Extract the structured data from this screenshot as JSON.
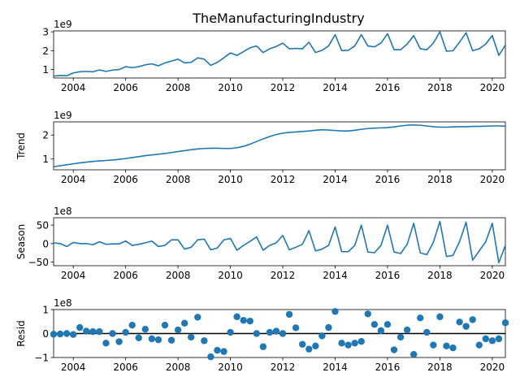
{
  "figure": {
    "title": "TheManufacturingIndustry",
    "x_ticks": [
      "2004",
      "2006",
      "2008",
      "2010",
      "2012",
      "2014",
      "2016",
      "2018",
      "2020"
    ],
    "line_color": "#1f77b4",
    "zero_line_color": "#000000"
  },
  "chart_data": [
    {
      "type": "line",
      "title": "TheManufacturingIndustry",
      "ylabel": "",
      "y_multiplier": "1e9",
      "xlim": [
        2003.25,
        2020.5
      ],
      "ylim": [
        0.55,
        3.05
      ],
      "y_ticks": [
        "1",
        "2",
        "3"
      ],
      "y_tick_values": [
        1,
        2,
        3
      ],
      "x": [
        2003.25,
        2003.5,
        2003.75,
        2004.0,
        2004.25,
        2004.5,
        2004.75,
        2005.0,
        2005.25,
        2005.5,
        2005.75,
        2006.0,
        2006.25,
        2006.5,
        2006.75,
        2007.0,
        2007.25,
        2007.5,
        2007.75,
        2008.0,
        2008.25,
        2008.5,
        2008.75,
        2009.0,
        2009.25,
        2009.5,
        2009.75,
        2010.0,
        2010.25,
        2010.5,
        2010.75,
        2011.0,
        2011.25,
        2011.5,
        2011.75,
        2012.0,
        2012.25,
        2012.5,
        2012.75,
        2013.0,
        2013.25,
        2013.5,
        2013.75,
        2014.0,
        2014.25,
        2014.5,
        2014.75,
        2015.0,
        2015.25,
        2015.5,
        2015.75,
        2016.0,
        2016.25,
        2016.5,
        2016.75,
        2017.0,
        2017.25,
        2017.5,
        2017.75,
        2018.0,
        2018.25,
        2018.5,
        2018.75,
        2019.0,
        2019.25,
        2019.5,
        2019.75,
        2020.0,
        2020.25,
        2020.5
      ],
      "series": [
        {
          "values": [
            0.65,
            0.68,
            0.67,
            0.82,
            0.88,
            0.9,
            0.88,
            0.98,
            0.9,
            0.97,
            1.0,
            1.15,
            1.1,
            1.15,
            1.25,
            1.3,
            1.2,
            1.35,
            1.45,
            1.55,
            1.35,
            1.38,
            1.62,
            1.55,
            1.22,
            1.38,
            1.62,
            1.88,
            1.75,
            1.95,
            2.15,
            2.25,
            1.9,
            2.1,
            2.22,
            2.4,
            2.1,
            2.12,
            2.1,
            2.45,
            1.9,
            2.02,
            2.25,
            2.85,
            2.0,
            2.02,
            2.25,
            2.85,
            2.25,
            2.2,
            2.4,
            2.9,
            2.05,
            2.05,
            2.35,
            2.8,
            2.1,
            2.05,
            2.4,
            3.0,
            1.97,
            2.0,
            2.45,
            2.95,
            2.0,
            2.1,
            2.35,
            2.8,
            1.75,
            2.3
          ]
        }
      ]
    },
    {
      "type": "line",
      "ylabel": "Trend",
      "y_multiplier": "1e9",
      "xlim": [
        2003.25,
        2020.5
      ],
      "ylim": [
        0.55,
        2.55
      ],
      "y_ticks": [
        "1",
        "2"
      ],
      "y_tick_values": [
        1,
        2
      ],
      "x": [
        2003.25,
        2003.5,
        2003.75,
        2004.0,
        2004.25,
        2004.5,
        2004.75,
        2005.0,
        2005.25,
        2005.5,
        2005.75,
        2006.0,
        2006.25,
        2006.5,
        2006.75,
        2007.0,
        2007.25,
        2007.5,
        2007.75,
        2008.0,
        2008.25,
        2008.5,
        2008.75,
        2009.0,
        2009.25,
        2009.5,
        2009.75,
        2010.0,
        2010.25,
        2010.5,
        2010.75,
        2011.0,
        2011.25,
        2011.5,
        2011.75,
        2012.0,
        2012.25,
        2012.5,
        2012.75,
        2013.0,
        2013.25,
        2013.5,
        2013.75,
        2014.0,
        2014.25,
        2014.5,
        2014.75,
        2015.0,
        2015.25,
        2015.5,
        2015.75,
        2016.0,
        2016.25,
        2016.5,
        2016.75,
        2017.0,
        2017.25,
        2017.5,
        2017.75,
        2018.0,
        2018.25,
        2018.5,
        2018.75,
        2019.0,
        2019.25,
        2019.5,
        2019.75,
        2020.0,
        2020.25,
        2020.5
      ],
      "series": [
        {
          "values": [
            0.68,
            0.72,
            0.76,
            0.8,
            0.84,
            0.87,
            0.9,
            0.92,
            0.94,
            0.96,
            0.99,
            1.02,
            1.06,
            1.1,
            1.14,
            1.17,
            1.2,
            1.23,
            1.27,
            1.31,
            1.35,
            1.39,
            1.42,
            1.44,
            1.45,
            1.45,
            1.44,
            1.44,
            1.47,
            1.53,
            1.62,
            1.73,
            1.84,
            1.94,
            2.02,
            2.08,
            2.11,
            2.13,
            2.15,
            2.17,
            2.2,
            2.22,
            2.21,
            2.19,
            2.17,
            2.17,
            2.2,
            2.24,
            2.27,
            2.29,
            2.3,
            2.31,
            2.34,
            2.38,
            2.41,
            2.42,
            2.41,
            2.38,
            2.35,
            2.33,
            2.33,
            2.34,
            2.35,
            2.35,
            2.36,
            2.36,
            2.37,
            2.38,
            2.38,
            2.37
          ]
        }
      ]
    },
    {
      "type": "line",
      "ylabel": "Season",
      "y_multiplier": "1e8",
      "xlim": [
        2003.25,
        2020.5
      ],
      "ylim": [
        -0.6,
        0.7
      ],
      "y_ticks": [
        "−50",
        "0",
        "50"
      ],
      "y_tick_values": [
        -0.5,
        0,
        0.5
      ],
      "x": [
        2003.25,
        2003.5,
        2003.75,
        2004.0,
        2004.25,
        2004.5,
        2004.75,
        2005.0,
        2005.25,
        2005.5,
        2005.75,
        2006.0,
        2006.25,
        2006.5,
        2006.75,
        2007.0,
        2007.25,
        2007.5,
        2007.75,
        2008.0,
        2008.25,
        2008.5,
        2008.75,
        2009.0,
        2009.25,
        2009.5,
        2009.75,
        2010.0,
        2010.25,
        2010.5,
        2010.75,
        2011.0,
        2011.25,
        2011.5,
        2011.75,
        2012.0,
        2012.25,
        2012.5,
        2012.75,
        2013.0,
        2013.25,
        2013.5,
        2013.75,
        2014.0,
        2014.25,
        2014.5,
        2014.75,
        2015.0,
        2015.25,
        2015.5,
        2015.75,
        2016.0,
        2016.25,
        2016.5,
        2016.75,
        2017.0,
        2017.25,
        2017.5,
        2017.75,
        2018.0,
        2018.25,
        2018.5,
        2018.75,
        2019.0,
        2019.25,
        2019.5,
        2019.75,
        2020.0,
        2020.25,
        2020.5
      ],
      "series": [
        {
          "values": [
            0.02,
            0.0,
            -0.08,
            0.03,
            0.0,
            0.0,
            -0.03,
            0.05,
            -0.02,
            -0.01,
            -0.01,
            0.07,
            -0.05,
            -0.02,
            0.02,
            0.07,
            -0.08,
            -0.05,
            0.1,
            0.1,
            -0.15,
            -0.1,
            0.1,
            0.12,
            -0.17,
            -0.12,
            0.1,
            0.14,
            -0.18,
            -0.05,
            0.06,
            0.18,
            -0.18,
            -0.05,
            0.02,
            0.22,
            -0.17,
            -0.1,
            -0.02,
            0.35,
            -0.2,
            -0.15,
            -0.05,
            0.45,
            -0.22,
            -0.22,
            -0.05,
            0.5,
            -0.23,
            -0.25,
            -0.05,
            0.5,
            -0.23,
            -0.27,
            -0.02,
            0.55,
            -0.25,
            -0.3,
            0.03,
            0.6,
            -0.35,
            -0.32,
            0.05,
            0.58,
            -0.45,
            -0.2,
            0.05,
            0.55,
            -0.52,
            -0.05
          ]
        }
      ]
    },
    {
      "type": "scatter",
      "ylabel": "Resid",
      "y_multiplier": "1e8",
      "xlim": [
        2003.25,
        2020.5
      ],
      "ylim": [
        -1.0,
        1.0
      ],
      "y_ticks": [
        "−1",
        "0",
        "1"
      ],
      "y_tick_values": [
        -1,
        0,
        1
      ],
      "x": [
        2003.25,
        2003.5,
        2003.75,
        2004.0,
        2004.25,
        2004.5,
        2004.75,
        2005.0,
        2005.25,
        2005.5,
        2005.75,
        2006.0,
        2006.25,
        2006.5,
        2006.75,
        2007.0,
        2007.25,
        2007.5,
        2007.75,
        2008.0,
        2008.25,
        2008.5,
        2008.75,
        2009.0,
        2009.25,
        2009.5,
        2009.75,
        2010.0,
        2010.25,
        2010.5,
        2010.75,
        2011.0,
        2011.25,
        2011.5,
        2011.75,
        2012.0,
        2012.25,
        2012.5,
        2012.75,
        2013.0,
        2013.25,
        2013.5,
        2013.75,
        2014.0,
        2014.25,
        2014.5,
        2014.75,
        2015.0,
        2015.25,
        2015.5,
        2015.75,
        2016.0,
        2016.25,
        2016.5,
        2016.75,
        2017.0,
        2017.25,
        2017.5,
        2017.75,
        2018.0,
        2018.25,
        2018.5,
        2018.75,
        2019.0,
        2019.25,
        2019.5,
        2019.75,
        2020.0,
        2020.25,
        2020.5
      ],
      "series": [
        {
          "values": [
            -0.03,
            -0.02,
            0.0,
            -0.04,
            0.25,
            0.1,
            0.08,
            0.08,
            -0.4,
            0.0,
            -0.34,
            0.05,
            0.35,
            -0.18,
            0.18,
            -0.22,
            -0.26,
            0.35,
            -0.28,
            0.15,
            0.43,
            -0.15,
            0.68,
            -0.3,
            -0.97,
            -0.7,
            -0.75,
            0.05,
            0.7,
            0.55,
            0.52,
            0.0,
            -0.55,
            0.05,
            0.1,
            0.0,
            0.8,
            0.24,
            -0.45,
            -0.65,
            -0.52,
            -0.1,
            0.25,
            0.92,
            -0.4,
            -0.48,
            -0.4,
            -0.33,
            0.82,
            0.38,
            0.12,
            0.38,
            -0.68,
            -0.15,
            0.15,
            -0.87,
            0.65,
            0.05,
            -0.48,
            0.7,
            -0.52,
            -0.6,
            0.48,
            0.3,
            0.58,
            -0.48,
            -0.22,
            -0.3,
            -0.22,
            0.45
          ]
        }
      ]
    }
  ]
}
